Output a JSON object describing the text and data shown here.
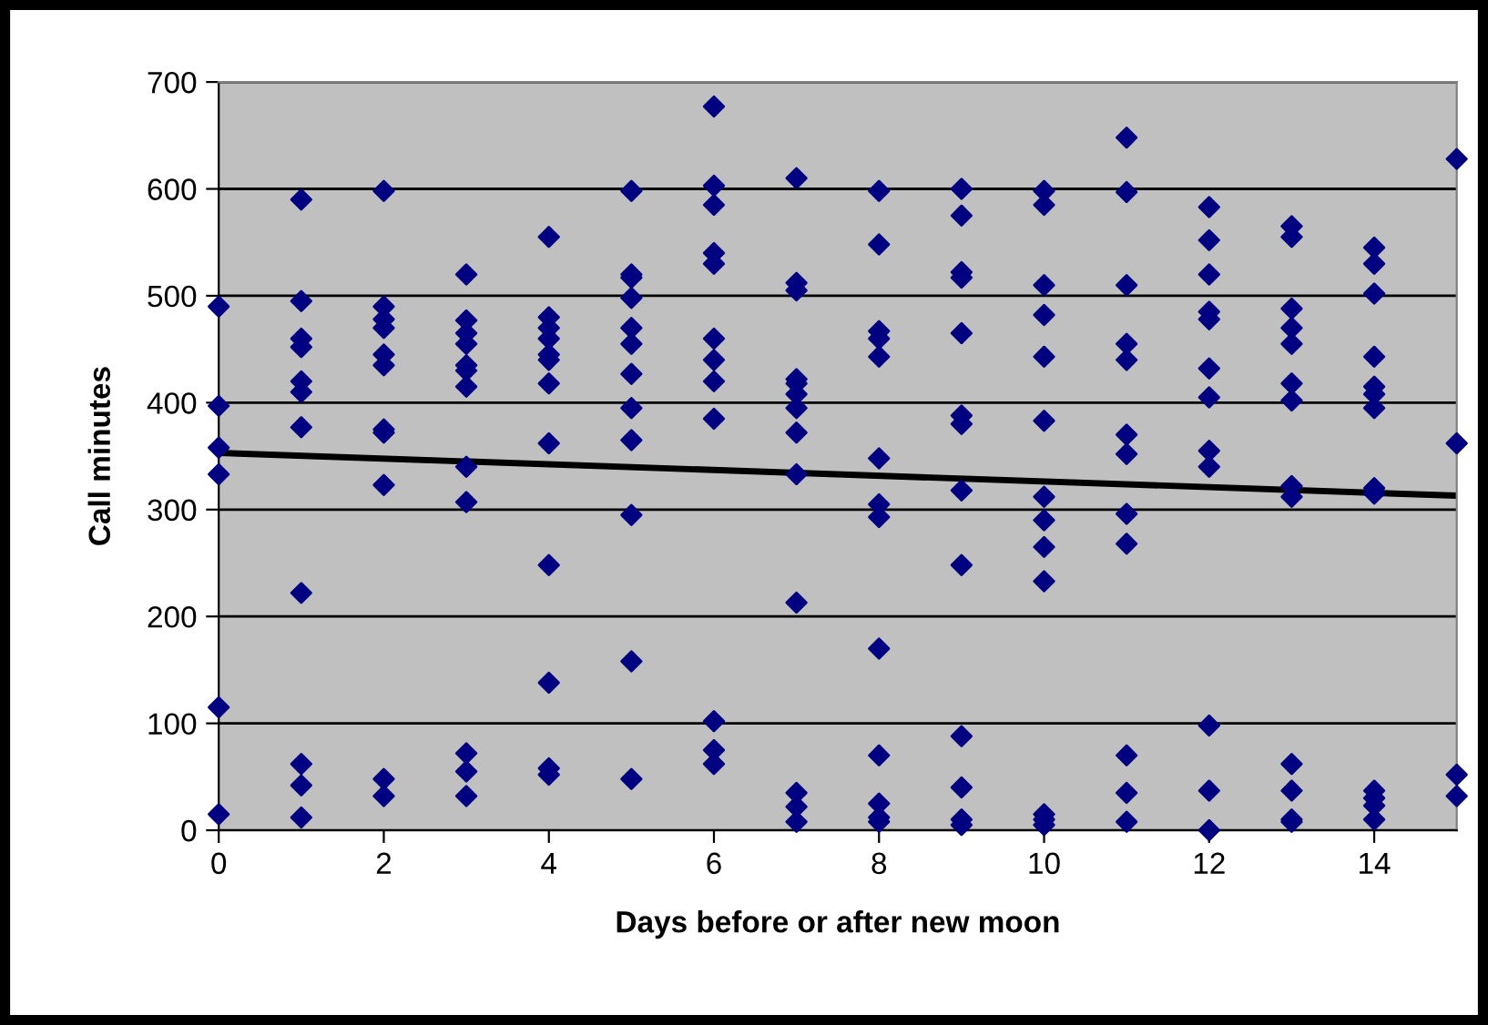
{
  "chart_data": {
    "type": "scatter",
    "xlabel": "Days before or after new moon",
    "ylabel": "Call minutes",
    "xlim": [
      0,
      15
    ],
    "xticks": [
      0,
      2,
      4,
      6,
      8,
      10,
      12,
      14
    ],
    "ylim": [
      0,
      700
    ],
    "yticks": [
      0,
      100,
      200,
      300,
      400,
      500,
      600,
      700
    ],
    "grid": "y",
    "marker": "diamond",
    "series": [
      {
        "color": "#000080",
        "x": [
          0,
          0,
          0,
          0,
          0,
          0,
          1,
          1,
          1,
          1,
          1,
          1,
          1,
          1,
          1,
          1,
          1,
          2,
          2,
          2,
          2,
          2,
          2,
          2,
          2,
          2,
          2,
          2,
          3,
          3,
          3,
          3,
          3,
          3,
          3,
          3,
          3,
          3,
          3,
          3,
          4,
          4,
          4,
          4,
          4,
          4,
          4,
          4,
          4,
          4,
          4,
          4,
          5,
          5,
          5,
          5,
          5,
          5,
          5,
          5,
          5,
          5,
          5,
          5,
          6,
          6,
          6,
          6,
          6,
          6,
          6,
          6,
          6,
          6,
          6,
          6,
          7,
          7,
          7,
          7,
          7,
          7,
          7,
          7,
          7,
          7,
          7,
          7,
          7,
          8,
          8,
          8,
          8,
          8,
          8,
          8,
          8,
          8,
          8,
          8,
          8,
          8,
          9,
          9,
          9,
          9,
          9,
          9,
          9,
          9,
          9,
          9,
          9,
          9,
          9,
          10,
          10,
          10,
          10,
          10,
          10,
          10,
          10,
          10,
          10,
          10,
          10,
          10,
          11,
          11,
          11,
          11,
          11,
          11,
          11,
          11,
          11,
          11,
          11,
          11,
          12,
          12,
          12,
          12,
          12,
          12,
          12,
          12,
          12,
          12,
          12,
          12,
          13,
          13,
          13,
          13,
          13,
          13,
          13,
          13,
          13,
          13,
          13,
          13,
          13,
          14,
          14,
          14,
          14,
          14,
          14,
          14,
          14,
          14,
          14,
          14,
          14,
          14,
          15,
          15,
          15,
          15
        ],
        "values": [
          490,
          397,
          358,
          333,
          115,
          15,
          590,
          495,
          460,
          452,
          420,
          410,
          377,
          222,
          62,
          42,
          12,
          598,
          490,
          478,
          470,
          445,
          435,
          375,
          372,
          323,
          48,
          32,
          520,
          477,
          465,
          455,
          435,
          430,
          415,
          340,
          307,
          72,
          55,
          32,
          555,
          480,
          470,
          460,
          445,
          440,
          418,
          362,
          248,
          138,
          58,
          52,
          598,
          520,
          517,
          498,
          470,
          455,
          427,
          395,
          365,
          295,
          158,
          48,
          677,
          603,
          585,
          540,
          530,
          460,
          440,
          420,
          385,
          102,
          75,
          62,
          610,
          512,
          505,
          422,
          418,
          408,
          395,
          372,
          333,
          213,
          35,
          22,
          8,
          598,
          548,
          467,
          460,
          443,
          348,
          305,
          293,
          170,
          70,
          25,
          12,
          8,
          600,
          575,
          522,
          517,
          465,
          388,
          380,
          318,
          248,
          88,
          40,
          10,
          5,
          598,
          585,
          510,
          482,
          443,
          383,
          312,
          290,
          265,
          233,
          15,
          10,
          5,
          648,
          597,
          510,
          455,
          440,
          370,
          352,
          296,
          268,
          70,
          35,
          8,
          583,
          552,
          520,
          485,
          478,
          432,
          405,
          355,
          340,
          98,
          37,
          0,
          565,
          555,
          488,
          470,
          455,
          418,
          402,
          322,
          312,
          62,
          37,
          10,
          8,
          545,
          530,
          502,
          443,
          415,
          408,
          395,
          320,
          315,
          37,
          30,
          23,
          10,
          628,
          362,
          52,
          32
        ]
      },
      {
        "type": "line",
        "color": "#000000",
        "marker": "none",
        "x": [
          0,
          15
        ],
        "values": [
          353,
          313
        ]
      }
    ]
  }
}
